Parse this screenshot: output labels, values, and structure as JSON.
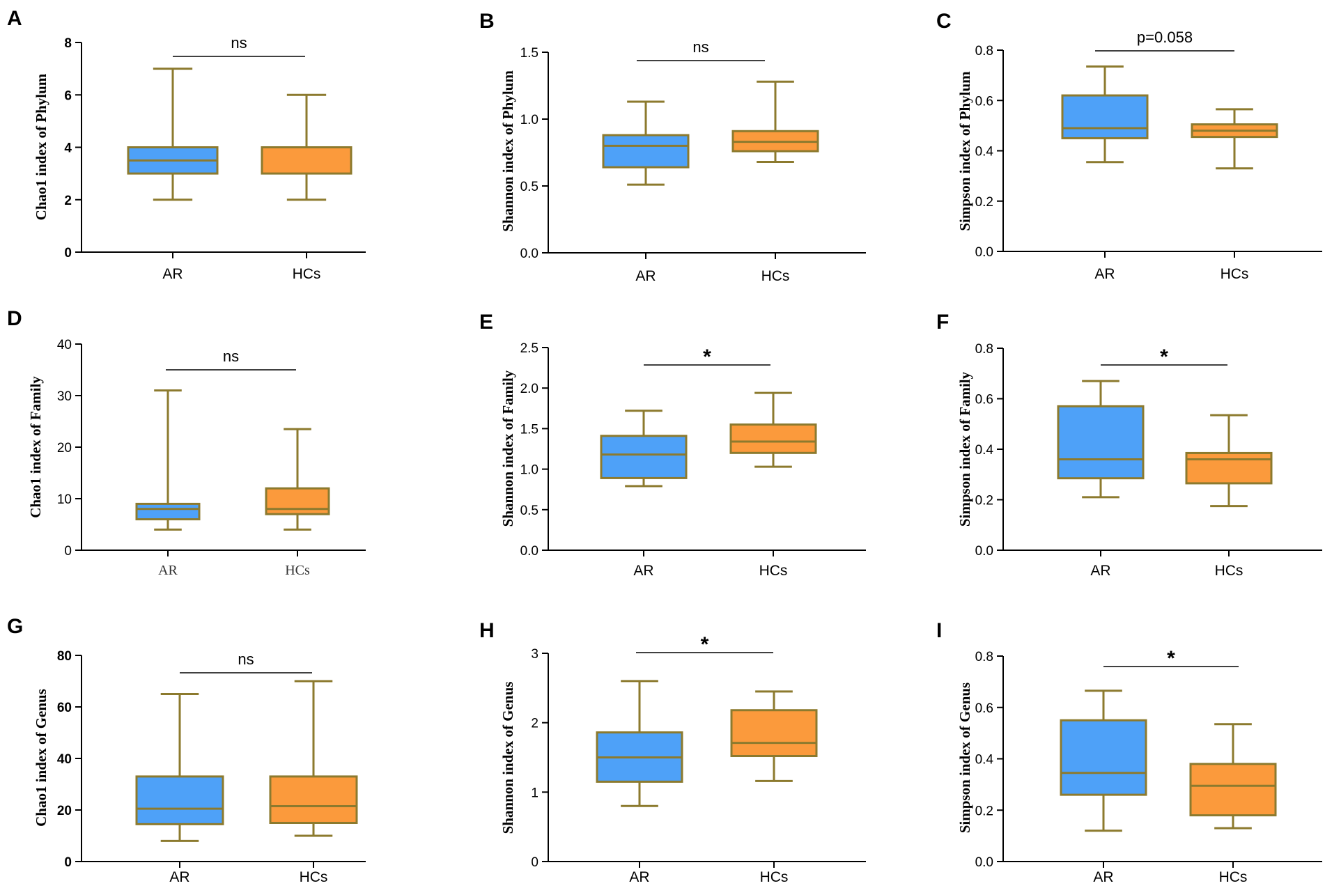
{
  "colors": {
    "ar_fill": "#4ea1f8",
    "hcs_fill": "#fb9a3c",
    "box_edge": "#8c7a2e",
    "axis": "#000000"
  },
  "chart_data": [
    {
      "panel": "A",
      "type": "box",
      "ylabel": "Chao1 index of Phylum",
      "ylim": [
        0,
        8
      ],
      "yticks": [
        "0",
        "2",
        "4",
        "6",
        "8"
      ],
      "ytick_values": [
        0,
        2,
        4,
        6,
        8
      ],
      "categories": [
        "AR",
        "HCs"
      ],
      "boxes": [
        {
          "group": "AR",
          "min": 2,
          "q1": 3,
          "median": 3.5,
          "q3": 4,
          "max": 7
        },
        {
          "group": "HCs",
          "min": 2,
          "q1": 3,
          "median": 4,
          "q3": 4,
          "max": 6
        }
      ],
      "significance": "ns"
    },
    {
      "panel": "B",
      "type": "box",
      "ylabel": "Shannon index of Phylum",
      "ylim": [
        0,
        1.5
      ],
      "yticks": [
        "0.0",
        "0.5",
        "1.0",
        "1.5"
      ],
      "ytick_values": [
        0,
        0.5,
        1.0,
        1.5
      ],
      "categories": [
        "AR",
        "HCs"
      ],
      "boxes": [
        {
          "group": "AR",
          "min": 0.51,
          "q1": 0.64,
          "median": 0.8,
          "q3": 0.88,
          "max": 1.13
        },
        {
          "group": "HCs",
          "min": 0.68,
          "q1": 0.76,
          "median": 0.83,
          "q3": 0.91,
          "max": 1.28
        }
      ],
      "significance": "ns"
    },
    {
      "panel": "C",
      "type": "box",
      "ylabel": "Simpson index of Phylum",
      "ylim": [
        0,
        0.8
      ],
      "yticks": [
        "0.0",
        "0.2",
        "0.4",
        "0.6",
        "0.8"
      ],
      "ytick_values": [
        0,
        0.2,
        0.4,
        0.6,
        0.8
      ],
      "categories": [
        "AR",
        "HCs"
      ],
      "boxes": [
        {
          "group": "AR",
          "min": 0.355,
          "q1": 0.45,
          "median": 0.49,
          "q3": 0.62,
          "max": 0.735
        },
        {
          "group": "HCs",
          "min": 0.33,
          "q1": 0.455,
          "median": 0.48,
          "q3": 0.505,
          "max": 0.565
        }
      ],
      "significance": "p=0.058"
    },
    {
      "panel": "D",
      "type": "box",
      "ylabel": "Chao1 index of Family",
      "ylim": [
        0,
        40
      ],
      "yticks": [
        "0",
        "10",
        "20",
        "30",
        "40"
      ],
      "ytick_values": [
        0,
        10,
        20,
        30,
        40
      ],
      "categories": [
        "AR",
        "HCs"
      ],
      "boxes": [
        {
          "group": "AR",
          "min": 4,
          "q1": 6,
          "median": 8,
          "q3": 9,
          "max": 31
        },
        {
          "group": "HCs",
          "min": 4,
          "q1": 7,
          "median": 8,
          "q3": 12,
          "max": 23.5
        }
      ],
      "significance": "ns"
    },
    {
      "panel": "E",
      "type": "box",
      "ylabel": "Shannon index of Family",
      "ylim": [
        0,
        2.5
      ],
      "yticks": [
        "0.0",
        "0.5",
        "1.0",
        "1.5",
        "2.0",
        "2.5"
      ],
      "ytick_values": [
        0,
        0.5,
        1.0,
        1.5,
        2.0,
        2.5
      ],
      "categories": [
        "AR",
        "HCs"
      ],
      "boxes": [
        {
          "group": "AR",
          "min": 0.79,
          "q1": 0.89,
          "median": 1.18,
          "q3": 1.41,
          "max": 1.72
        },
        {
          "group": "HCs",
          "min": 1.03,
          "q1": 1.2,
          "median": 1.34,
          "q3": 1.55,
          "max": 1.94
        }
      ],
      "significance": "*"
    },
    {
      "panel": "F",
      "type": "box",
      "ylabel": "Simpson index of Family",
      "ylim": [
        0,
        0.8
      ],
      "yticks": [
        "0.0",
        "0.2",
        "0.4",
        "0.6",
        "0.8"
      ],
      "ytick_values": [
        0,
        0.2,
        0.4,
        0.6,
        0.8
      ],
      "categories": [
        "AR",
        "HCs"
      ],
      "boxes": [
        {
          "group": "AR",
          "min": 0.21,
          "q1": 0.285,
          "median": 0.36,
          "q3": 0.57,
          "max": 0.67
        },
        {
          "group": "HCs",
          "min": 0.175,
          "q1": 0.265,
          "median": 0.36,
          "q3": 0.385,
          "max": 0.535
        }
      ],
      "significance": "*"
    },
    {
      "panel": "G",
      "type": "box",
      "ylabel": "Chao1 index of Genus",
      "ylim": [
        0,
        80
      ],
      "yticks": [
        "0",
        "20",
        "40",
        "60",
        "80"
      ],
      "ytick_values": [
        0,
        20,
        40,
        60,
        80
      ],
      "categories": [
        "AR",
        "HCs"
      ],
      "boxes": [
        {
          "group": "AR",
          "min": 8,
          "q1": 14.5,
          "median": 20.5,
          "q3": 33,
          "max": 65
        },
        {
          "group": "HCs",
          "min": 10,
          "q1": 15,
          "median": 21.5,
          "q3": 33,
          "max": 70
        }
      ],
      "significance": "ns"
    },
    {
      "panel": "H",
      "type": "box",
      "ylabel": "Shannon index of Genus",
      "ylim": [
        0,
        3
      ],
      "yticks": [
        "0",
        "1",
        "2",
        "3"
      ],
      "ytick_values": [
        0,
        1,
        2,
        3
      ],
      "categories": [
        "AR",
        "HCs"
      ],
      "boxes": [
        {
          "group": "AR",
          "min": 0.8,
          "q1": 1.15,
          "median": 1.5,
          "q3": 1.86,
          "max": 2.6
        },
        {
          "group": "HCs",
          "min": 1.16,
          "q1": 1.52,
          "median": 1.71,
          "q3": 2.18,
          "max": 2.45
        }
      ],
      "significance": "*"
    },
    {
      "panel": "I",
      "type": "box",
      "ylabel": "Simpson index of Genus",
      "ylim": [
        0,
        0.8
      ],
      "yticks": [
        "0.0",
        "0.2",
        "0.4",
        "0.6",
        "0.8"
      ],
      "ytick_values": [
        0,
        0.2,
        0.4,
        0.6,
        0.8
      ],
      "categories": [
        "AR",
        "HCs"
      ],
      "boxes": [
        {
          "group": "AR",
          "min": 0.12,
          "q1": 0.26,
          "median": 0.345,
          "q3": 0.55,
          "max": 0.665
        },
        {
          "group": "HCs",
          "min": 0.13,
          "q1": 0.18,
          "median": 0.295,
          "q3": 0.38,
          "max": 0.535
        }
      ],
      "significance": "*"
    }
  ]
}
